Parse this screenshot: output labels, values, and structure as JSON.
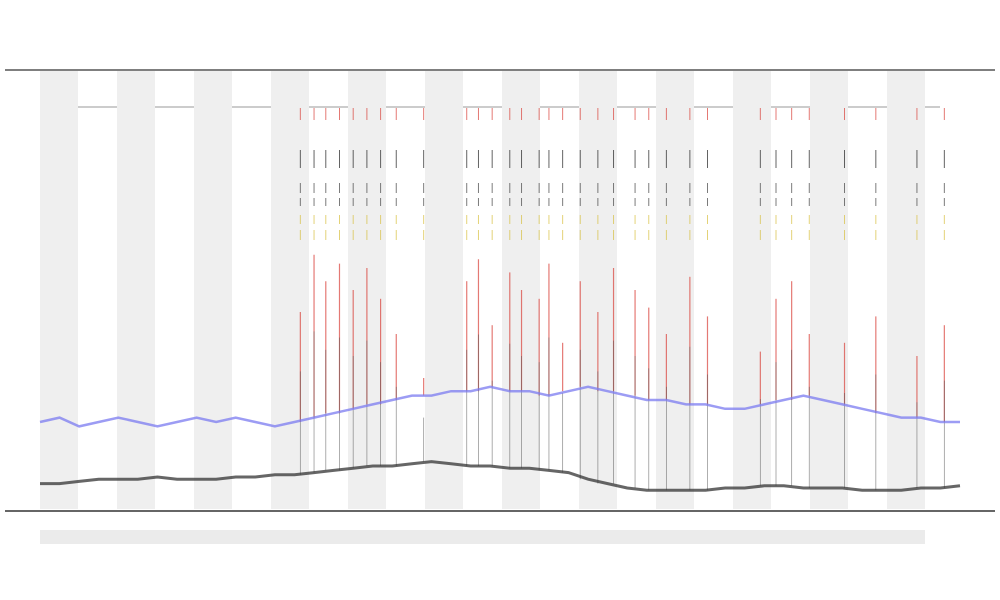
{
  "chart_data": {
    "type": "line",
    "xlim": [
      0,
      47
    ],
    "ylim": [
      0,
      100
    ],
    "series": [
      {
        "color": "#7b7bf0",
        "values": [
          20,
          21,
          19,
          20,
          21,
          20,
          19,
          20,
          21,
          20,
          21,
          20,
          19,
          20,
          21,
          22,
          23,
          24,
          25,
          26,
          26,
          27,
          27,
          28,
          27,
          27,
          26,
          27,
          28,
          27,
          26,
          25,
          25,
          24,
          24,
          23,
          23,
          24,
          25,
          26,
          25,
          24,
          23,
          22,
          21,
          21,
          20,
          20
        ]
      },
      {
        "color": "#333333",
        "values": [
          6,
          6,
          6.5,
          7,
          7,
          7,
          7.5,
          7,
          7,
          7,
          7.5,
          7.5,
          8,
          8,
          8.5,
          9,
          9.5,
          10,
          10,
          10.5,
          11,
          10.5,
          10,
          10,
          9.5,
          9.5,
          9,
          8.5,
          7,
          6,
          5,
          4.5,
          4.5,
          4.5,
          4.5,
          5,
          5,
          5.5,
          5.5,
          5,
          5,
          5,
          4.5,
          4.5,
          4.5,
          5,
          5,
          5.5
        ]
      }
    ],
    "spikes": {
      "color": "#d9413a",
      "x": [
        13.3,
        14,
        14.6,
        15.3,
        16,
        16.7,
        17.4,
        18.2,
        19.6,
        21.8,
        22.4,
        23.1,
        24,
        24.6,
        25.5,
        26,
        26.7,
        27.6,
        28.5,
        29.3,
        30.4,
        31.1,
        32,
        33.2,
        34.1,
        36.8,
        37.6,
        38.4,
        39.3,
        41.1,
        42.7,
        44.8,
        46.2
      ],
      "values": [
        45,
        58,
        52,
        56,
        50,
        55,
        48,
        40,
        30,
        52,
        57,
        42,
        54,
        50,
        48,
        56,
        38,
        52,
        45,
        55,
        50,
        46,
        40,
        53,
        44,
        36,
        48,
        52,
        40,
        38,
        44,
        35,
        42
      ]
    }
  }
}
